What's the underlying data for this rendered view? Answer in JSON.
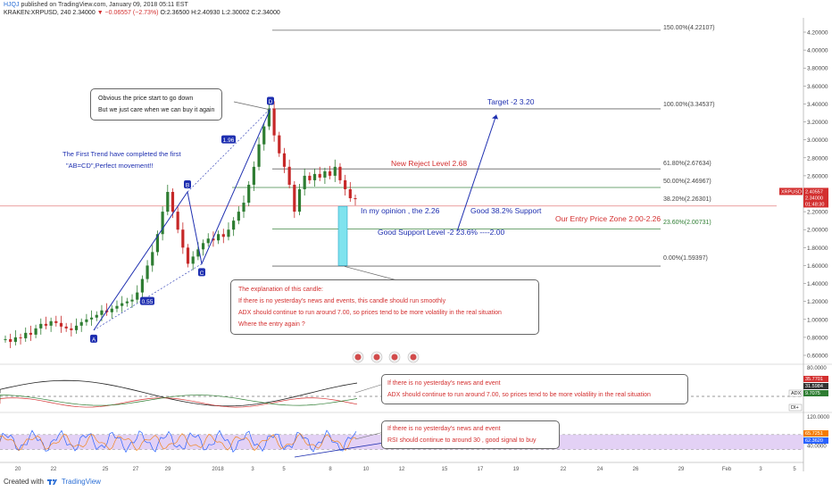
{
  "header": {
    "user": "HJQJ",
    "published": "published on TradingView.com, January 09, 2018 05:11 EST",
    "symbol_line": "KRAKEN:XRPUSD, 240  2.34000",
    "change": "▼ −0.06557 (−2.73%)",
    "ohlc": "O:2.36500  H:2.40930  L:2.30002  C:2.34000"
  },
  "footer": {
    "created_with": "Created with",
    "brand": "TradingView"
  },
  "colors": {
    "up": "#2e7d32",
    "down": "#c62828",
    "pattern": "#1e2fb0",
    "rsi_band": "#e3d1f5",
    "accent_blue": "#2962ff"
  },
  "annotations": {
    "obvious_box": [
      "Obvious the price start to go down",
      "But we just care when we can buy it again"
    ],
    "first_trend": [
      "The First Trend have completed the first",
      "\"AB=CD\",Perfect movement!!"
    ],
    "target": "Target -2   3.20",
    "new_reject": "New Reject Level 2.68",
    "opinion": "In my opinion , the 2.26",
    "good_support_38": "Good 38.2% Support",
    "entry_zone": "Our Entry Price Zone 2.00-2.26",
    "good_support_2": "Good Support Level -2  23.6% ----2.00",
    "explanation_box": [
      "The explanation of this candle:",
      "If there is no yesterday's news and events, this candle  should run smoothly",
      "ADX should continue to run around 7.00, so prices tend to be more volatility in the real situation",
      "Where the entry again ?"
    ],
    "adx_box": [
      "If there is no yesterday's news and event",
      "ADX should continue to run around 7.00, so prices tend to be more volatility in the real situation"
    ],
    "rsi_box": [
      "If there is no yesterday's news and event",
      "RSI should continue to around 30 , good signal to buy"
    ]
  },
  "fib_levels": [
    {
      "label": "150.00%(4.22107)",
      "value": 4.22107
    },
    {
      "label": "100.00%(3.34537)",
      "value": 3.34537
    },
    {
      "label": "61.80%(2.67634)",
      "value": 2.67634
    },
    {
      "label": "50.00%(2.46967)",
      "value": 2.46967
    },
    {
      "label": "38.20%(2.26301)",
      "value": 2.26301
    },
    {
      "label": "23.60%(2.00731)",
      "value": 2.00731
    },
    {
      "label": "0.00%(1.59397)",
      "value": 1.59397
    }
  ],
  "chart_data": {
    "type": "candlestick",
    "symbol": "XRPUSD",
    "interval": "240",
    "ylim": [
      0.6,
      4.3
    ],
    "y_ticks": [
      "4.20000",
      "4.00000",
      "3.80000",
      "3.60000",
      "3.40000",
      "3.20000",
      "3.00000",
      "2.80000",
      "2.60000",
      "2.40000",
      "2.20000",
      "2.00000",
      "1.80000",
      "1.60000",
      "1.40000",
      "1.20000",
      "1.00000",
      "0.80000",
      "0.60000"
    ],
    "x_ticks": [
      "20",
      "22",
      "25",
      "27",
      "29",
      "2018",
      "3",
      "5",
      "8",
      "10",
      "12",
      "15",
      "17",
      "19",
      "22",
      "24",
      "26",
      "29",
      "Feb",
      "3",
      "5"
    ],
    "last_price_label": "XRPUSD",
    "last_price": "2.40557",
    "close": "2.34000",
    "countdown": "01:48:30",
    "wave_points": [
      {
        "label": "A",
        "price": 0.88
      },
      {
        "label": "0.55",
        "price": 1.2
      },
      {
        "label": "B",
        "price": 2.42
      },
      {
        "label": "C",
        "price": 1.62
      },
      {
        "label": "1.96",
        "price": 3.0
      },
      {
        "label": "D",
        "price": 3.35
      }
    ],
    "price_path": [
      0.78,
      0.75,
      0.8,
      0.79,
      0.85,
      0.83,
      0.9,
      0.95,
      0.93,
      0.98,
      0.96,
      0.92,
      0.9,
      0.88,
      0.93,
      0.97,
      1.0,
      1.02,
      1.05,
      1.1,
      1.08,
      1.12,
      1.15,
      1.18,
      1.2,
      1.22,
      1.3,
      1.45,
      1.6,
      1.75,
      1.95,
      2.2,
      2.42,
      2.2,
      2.0,
      1.8,
      1.62,
      1.7,
      1.78,
      1.85,
      1.9,
      1.88,
      1.95,
      1.92,
      2.0,
      2.1,
      2.2,
      2.3,
      2.5,
      2.7,
      2.95,
      3.15,
      3.35,
      3.05,
      2.85,
      2.7,
      2.5,
      2.2,
      2.45,
      2.6,
      2.55,
      2.62,
      2.58,
      2.65,
      2.6,
      2.7,
      2.55,
      2.45,
      2.35,
      2.34
    ],
    "adx": {
      "ylim": [
        0,
        80
      ],
      "ticks": [
        "80.0000"
      ],
      "labels": [
        "35.7701",
        "31.5984",
        "9.7075"
      ],
      "names": [
        "ADX",
        "DI+"
      ]
    },
    "rsi": {
      "ylim": [
        0,
        120
      ],
      "ticks": [
        "120.0000",
        "40.0000"
      ],
      "labels": [
        "65.7251",
        "62.3620"
      ],
      "band": [
        30,
        70
      ]
    }
  }
}
